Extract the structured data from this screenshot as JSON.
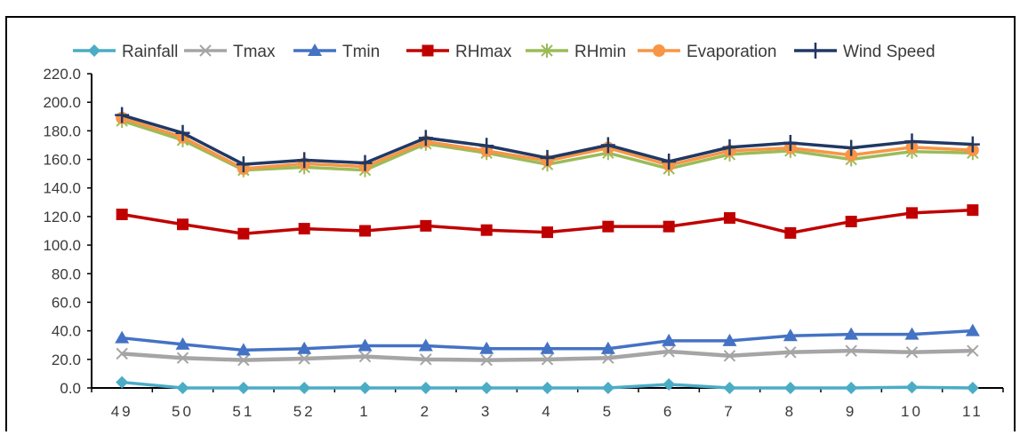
{
  "chart_data": {
    "type": "line",
    "title": "",
    "xlabel": "",
    "ylabel": "",
    "categories": [
      "49",
      "50",
      "51",
      "52",
      "1",
      "2",
      "3",
      "4",
      "5",
      "6",
      "7",
      "8",
      "9",
      "10",
      "11"
    ],
    "ylim": [
      0,
      220
    ],
    "ytick_labels": [
      "0.0",
      "20.0",
      "40.0",
      "60.0",
      "80.0",
      "100.0",
      "120.0",
      "140.0",
      "160.0",
      "180.0",
      "200.0",
      "220.0"
    ],
    "grid": false,
    "legend_position": "top",
    "series": [
      {
        "name": "Rainfall",
        "color": "#4bacc6",
        "marker": "diamond",
        "values": [
          4.0,
          0.0,
          0.0,
          0.0,
          0.0,
          0.0,
          0.0,
          0.0,
          0.0,
          2.5,
          0.0,
          0.0,
          0.0,
          0.5,
          0.0
        ]
      },
      {
        "name": "Tmax",
        "color": "#a5a5a5",
        "marker": "x",
        "values": [
          24.0,
          21.0,
          19.5,
          20.5,
          22.0,
          20.0,
          19.5,
          20.0,
          21.0,
          25.5,
          22.5,
          25.0,
          26.0,
          25.0,
          26.0
        ]
      },
      {
        "name": "Tmin",
        "color": "#4472c4",
        "marker": "triangle",
        "values": [
          35.0,
          30.5,
          26.5,
          27.5,
          29.5,
          29.5,
          27.5,
          27.5,
          27.5,
          33.0,
          33.0,
          36.5,
          37.5,
          37.5,
          40.0
        ]
      },
      {
        "name": "RHmax",
        "color": "#c00000",
        "marker": "square",
        "values": [
          121.5,
          114.5,
          108.0,
          111.5,
          110.0,
          113.5,
          110.5,
          109.0,
          113.0,
          113.0,
          119.0,
          108.5,
          116.5,
          122.5,
          124.5
        ]
      },
      {
        "name": "RHmin",
        "color": "#9bbb59",
        "marker": "star",
        "values": [
          187.0,
          173.5,
          152.5,
          154.5,
          152.5,
          171.0,
          164.5,
          156.5,
          164.5,
          153.5,
          163.5,
          166.0,
          160.0,
          165.5,
          164.5
        ]
      },
      {
        "name": "Evaporation",
        "color": "#f79646",
        "marker": "circle",
        "values": [
          189.0,
          175.5,
          153.5,
          157.0,
          155.0,
          172.5,
          166.0,
          159.0,
          168.0,
          156.0,
          166.0,
          168.0,
          163.0,
          168.5,
          166.5
        ]
      },
      {
        "name": "Wind Speed",
        "color": "#203864",
        "marker": "plus",
        "values": [
          191.0,
          178.5,
          156.5,
          159.5,
          157.5,
          175.0,
          169.5,
          161.0,
          170.0,
          158.5,
          168.5,
          171.5,
          168.0,
          172.5,
          170.5
        ]
      }
    ]
  }
}
